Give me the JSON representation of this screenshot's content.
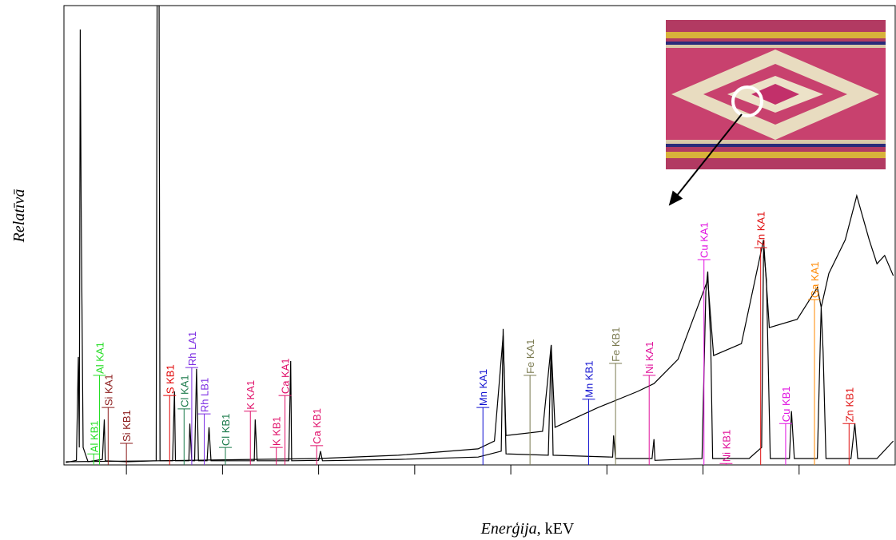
{
  "chart_data": {
    "type": "line",
    "ylabel": "Relatīvā",
    "xlabel": "Enerģija",
    "xlabel_unit": ", kEV",
    "xlim": [
      1.35,
      10.0
    ],
    "ylim": [
      0,
      100
    ],
    "xticks": [
      2,
      3,
      4,
      5,
      6,
      7,
      8,
      9
    ],
    "series": [
      {
        "color": "#000000",
        "x": [
          1.37,
          1.48,
          1.5,
          1.51,
          1.52,
          1.53,
          1.55,
          1.6,
          1.75,
          1.77,
          1.78,
          2.01,
          2.31,
          2.32,
          2.34,
          2.35,
          2.48,
          2.5,
          2.51,
          2.65,
          2.66,
          2.68,
          2.71,
          2.73,
          2.75,
          2.84,
          2.86,
          2.88,
          3.33,
          3.34,
          3.36,
          3.69,
          3.71,
          3.72,
          4.0,
          4.02,
          4.04,
          4.83,
          5.66,
          5.9,
          5.92,
          5.95,
          6.39,
          6.42,
          6.44,
          7.06,
          7.07,
          7.09,
          7.47,
          7.49,
          7.5,
          7.99,
          8.03,
          8.05,
          8.08,
          8.1,
          8.48,
          8.61,
          8.63,
          8.66,
          8.7,
          8.9,
          8.92,
          8.95,
          9.19,
          9.23,
          9.25,
          9.28,
          9.54,
          9.58,
          9.61,
          9.81,
          9.98
        ],
        "values": [
          0.5,
          1.0,
          23.5,
          3.8,
          94.8,
          55.1,
          3.8,
          0.7,
          1.2,
          9.9,
          0.9,
          0.7,
          0.9,
          104.7,
          104.7,
          0.9,
          0.9,
          16.0,
          0.9,
          0.9,
          9.0,
          0.9,
          0.9,
          20.9,
          0.9,
          0.9,
          8.2,
          0.9,
          0.9,
          9.9,
          0.9,
          0.9,
          22.6,
          0.9,
          1.0,
          3.0,
          0.9,
          1.2,
          1.7,
          3.0,
          29.6,
          2.4,
          2.1,
          26.1,
          2.1,
          1.7,
          6.4,
          1.4,
          1.4,
          5.6,
          1.0,
          1.4,
          37.7,
          42.1,
          26.4,
          1.4,
          1.4,
          3.8,
          47.3,
          40.3,
          1.4,
          1.4,
          11.7,
          1.4,
          1.4,
          34.3,
          24.7,
          1.4,
          1.4,
          9.0,
          1.4,
          1.4,
          5.2
        ]
      },
      {
        "color": "#000000",
        "x": [
          1.37,
          2.34,
          4.0,
          4.83,
          5.66,
          5.83,
          5.92,
          5.95,
          6.33,
          6.42,
          6.46,
          6.91,
          7.32,
          7.49,
          7.74,
          8.05,
          8.11,
          8.4,
          8.63,
          8.69,
          8.98,
          9.19,
          9.23,
          9.31,
          9.48,
          9.6,
          9.73,
          9.81,
          9.89,
          9.98
        ],
        "values": [
          0.7,
          0.9,
          1.4,
          2.1,
          3.5,
          5.2,
          28.2,
          6.4,
          7.3,
          26.1,
          8.2,
          12.5,
          16.0,
          17.7,
          23.0,
          40.3,
          23.8,
          26.4,
          49.0,
          29.9,
          31.7,
          38.6,
          34.3,
          41.7,
          49.0,
          58.6,
          49.0,
          43.8,
          45.6,
          41.2
        ]
      }
    ],
    "annotations": [
      {
        "text": "Al KB1",
        "color": "#22dd22",
        "x": 1.66,
        "y": 2.4
      },
      {
        "text": "Al KA1",
        "color": "#22dd22",
        "x": 1.72,
        "y": 19.5
      },
      {
        "text": "Si KA1",
        "color": "#8b1a1a",
        "x": 1.81,
        "y": 12.5
      },
      {
        "text": "Si KB1",
        "color": "#8b1a1a",
        "x": 2.0,
        "y": 4.7
      },
      {
        "text": "S  KB1",
        "color": "#e00000",
        "x": 2.45,
        "y": 15.1
      },
      {
        "text": "Cl KA1",
        "color": "#1a7a4a",
        "x": 2.6,
        "y": 12.2
      },
      {
        "text": "Rh LA1",
        "color": "#7b2be2",
        "x": 2.68,
        "y": 21.2
      },
      {
        "text": "Rh LB1",
        "color": "#7b2be2",
        "x": 2.81,
        "y": 11.1
      },
      {
        "text": "Cl KB1",
        "color": "#1a7a4a",
        "x": 3.03,
        "y": 3.8
      },
      {
        "text": "K  KA1",
        "color": "#e0106a",
        "x": 3.29,
        "y": 11.7
      },
      {
        "text": "K  KB1",
        "color": "#e0106a",
        "x": 3.56,
        "y": 3.8
      },
      {
        "text": "Ca KA1",
        "color": "#e0106a",
        "x": 3.65,
        "y": 15.1
      },
      {
        "text": "Ca KB1",
        "color": "#e0106a",
        "x": 3.98,
        "y": 4.2
      },
      {
        "text": "Mn KA1",
        "color": "#1010d0",
        "x": 5.71,
        "y": 12.5
      },
      {
        "text": "Fe KA1",
        "color": "#7a7a50",
        "x": 6.2,
        "y": 19.5
      },
      {
        "text": "Mn KB1",
        "color": "#1010d0",
        "x": 6.81,
        "y": 14.3
      },
      {
        "text": "Fe KB1",
        "color": "#7a7a50",
        "x": 7.09,
        "y": 22.1
      },
      {
        "text": "Ni KA1",
        "color": "#e0109a",
        "x": 7.44,
        "y": 19.5
      },
      {
        "text": "Cu KA1",
        "color": "#e010e0",
        "x": 8.01,
        "y": 44.7
      },
      {
        "text": "Ni KB1",
        "color": "#e0109a",
        "x": 8.24,
        "y": 0.3
      },
      {
        "text": "Zn KA1",
        "color": "#e01010",
        "x": 8.6,
        "y": 47.3
      },
      {
        "text": "Cu KB1",
        "color": "#e010e0",
        "x": 8.86,
        "y": 9.0
      },
      {
        "text": "Ga KA1",
        "color": "#ff8800",
        "x": 9.16,
        "y": 36.0
      },
      {
        "text": "Zn KB1",
        "color": "#e01010",
        "x": 9.52,
        "y": 9.0
      }
    ]
  }
}
